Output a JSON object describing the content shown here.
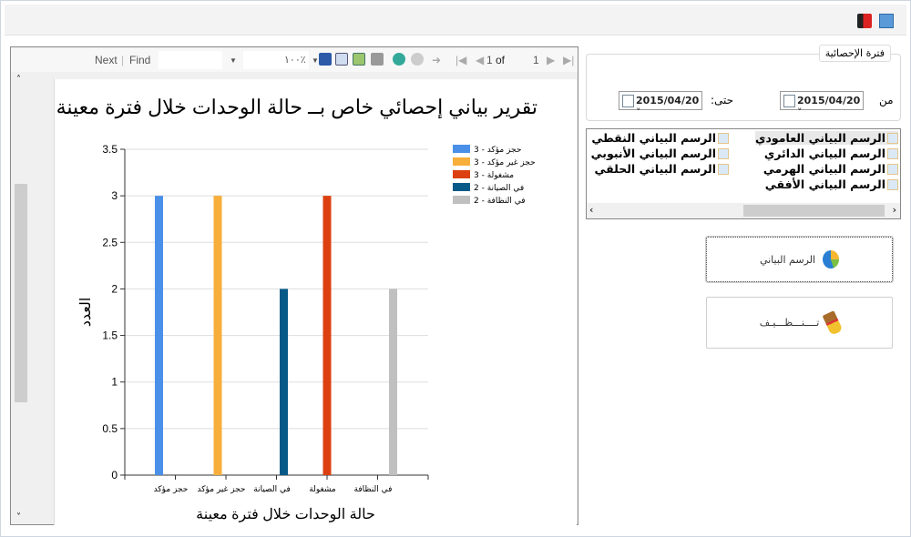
{
  "toolbar": {
    "icons": [
      "exit-icon",
      "chart-settings-icon"
    ]
  },
  "viewer": {
    "next": "Next",
    "find": "Find",
    "zoom": "١٠٠٪",
    "page_current": "1",
    "page_of": "of",
    "page_total": "1",
    "icons": [
      "save-icon",
      "page-setup-icon",
      "print-layout-icon",
      "print-icon",
      "refresh-icon",
      "stop-icon",
      "back-icon",
      "first-page-icon",
      "prev-page-icon",
      "next-page-icon",
      "last-page-icon"
    ]
  },
  "report": {
    "title": "تقرير بياني إحصائي خاص بــ  حالة الوحدات خلال فترة معينة"
  },
  "chart_data": {
    "type": "bar",
    "categories": [
      "حجز مؤكد",
      "حجز غير مؤكد",
      "في الصيانة",
      "مشغولة",
      "في النظافة"
    ],
    "values": [
      3,
      3,
      2,
      3,
      2
    ],
    "colors": [
      "#4a90e8",
      "#f7ae3b",
      "#075a88",
      "#dc4010",
      "#c0c0c0"
    ],
    "legend": [
      "حجز مؤكد - 3",
      "حجز غير مؤكد - 3",
      "مشغولة - 3",
      "في الصيانة - 2",
      "في النظافة - 2"
    ],
    "legend_colors": [
      "#4a90e8",
      "#f7ae3b",
      "#dc4010",
      "#075a88",
      "#c0c0c0"
    ],
    "legend_placement": "top-right",
    "xlabel": "حالة الوحدات خلال فترة معينة",
    "ylabel": "العدد",
    "ylim": [
      0,
      3.5
    ],
    "yticks": [
      "0",
      "0.5",
      "1",
      "1.5",
      "2",
      "2.5",
      "3",
      "3.5"
    ],
    "grid": true
  },
  "period": {
    "label": "فترة الإحصائية",
    "from_label": "من",
    "from": "2015/04/20",
    "to_label": "حتى:",
    "to": "2015/04/20"
  },
  "chart_types": [
    "الرسم البياني العامودي",
    "الرسم البياني الدائري",
    "الرسم البياني الهرمي",
    "الرسم البياني الأفقي",
    "الرسم البياني النقطي",
    "الرسم البياني الأنبوبي",
    "الرسم البياني الحلقي"
  ],
  "buttons": {
    "chart": "الرسم البياني",
    "clear": "تــــنـــظـــيـف"
  }
}
